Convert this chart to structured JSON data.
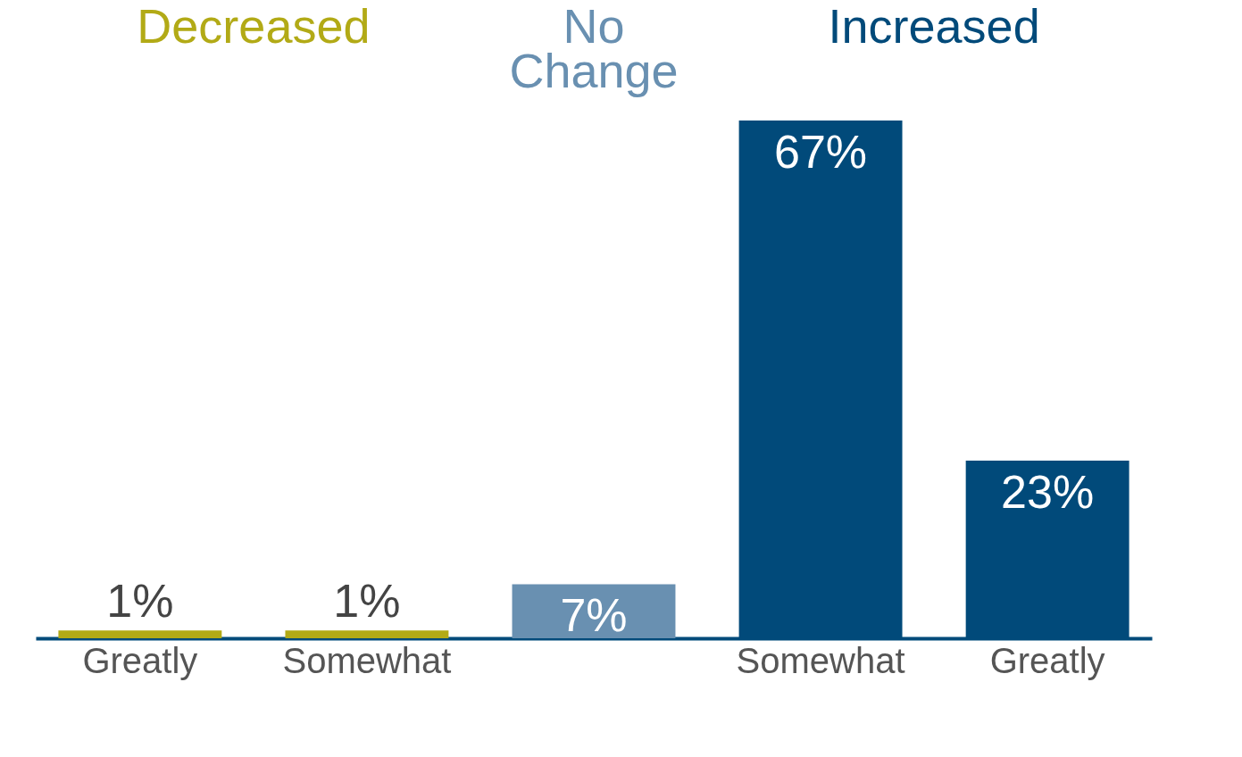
{
  "chart_data": {
    "type": "bar",
    "categories": [
      "Greatly",
      "Somewhat",
      null,
      "Somewhat",
      "Greatly"
    ],
    "values": [
      1,
      1,
      7,
      67,
      23
    ],
    "colors": [
      "#b2aa16",
      "#b2aa16",
      "#6990b1",
      "#014a7a",
      "#014a7a"
    ],
    "value_labels": [
      "1%",
      "1%",
      "7%",
      "67%",
      "23%"
    ],
    "annotations": [
      "Decreased",
      "No Change",
      "Increased"
    ]
  }
}
